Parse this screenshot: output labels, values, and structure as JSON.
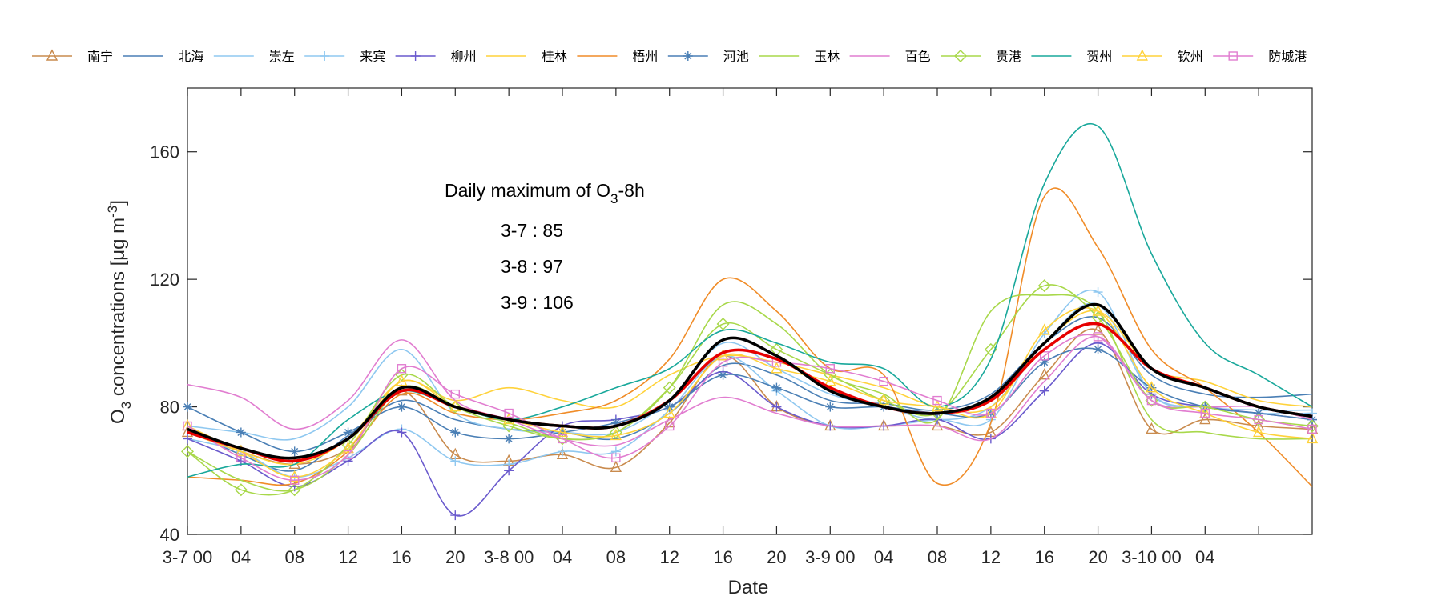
{
  "chart_data": {
    "type": "line",
    "xlabel": "Date",
    "ylabel_parts": {
      "main": "O",
      "sub": "3",
      "rest": " concentrations [μg m",
      "sup": "-3",
      "end": "]"
    },
    "ylim": [
      40,
      180
    ],
    "xlim": [
      0,
      84
    ],
    "yticks": [
      40,
      80,
      120,
      160
    ],
    "ytick_labels": [
      "40",
      "80",
      "120",
      "160"
    ],
    "xticks": [
      0,
      4,
      8,
      12,
      16,
      20,
      24,
      28,
      32,
      36,
      40,
      44,
      48,
      52,
      56,
      60,
      64,
      68,
      72,
      76,
      80
    ],
    "xtick_labels": [
      "3-7 00",
      "04",
      "08",
      "12",
      "16",
      "20",
      "3-8 00",
      "04",
      "08",
      "12",
      "16",
      "20",
      "3-9 00",
      "04",
      "08",
      "12",
      "16",
      "20",
      "3-10 00",
      "04",
      ""
    ],
    "annotation": {
      "title_main": "Daily maximum of O",
      "title_sub": "3",
      "title_end": "-8h",
      "lines": [
        "3-7 : 85",
        "3-8 : 97",
        "3-9 : 106"
      ]
    },
    "x": [
      0,
      4,
      8,
      12,
      16,
      20,
      24,
      28,
      32,
      36,
      40,
      44,
      48,
      52,
      56,
      60,
      64,
      68,
      72,
      76,
      80,
      84
    ],
    "series": [
      {
        "name": "南宁",
        "color": "#C98B4E",
        "marker": "triangle",
        "values": [
          72,
          66,
          62,
          67,
          85,
          65,
          63,
          65,
          61,
          75,
          96,
          80,
          74,
          74,
          74,
          72,
          90,
          104,
          73,
          76,
          74,
          73
        ]
      },
      {
        "name": "北海",
        "color": "#4A7FB5",
        "marker": "none",
        "values": [
          73,
          65,
          60,
          71,
          82,
          76,
          73,
          72,
          70,
          78,
          93,
          90,
          82,
          81,
          79,
          84,
          100,
          108,
          90,
          84,
          83,
          84
        ]
      },
      {
        "name": "崇左",
        "color": "#8FC8F0",
        "marker": "none",
        "values": [
          74,
          72,
          70,
          80,
          98,
          78,
          73,
          72,
          72,
          82,
          100,
          92,
          84,
          80,
          76,
          80,
          100,
          112,
          84,
          80,
          79,
          79
        ]
      },
      {
        "name": "来宾",
        "color": "#8FC8F0",
        "marker": "plus",
        "values": [
          70,
          66,
          58,
          64,
          73,
          63,
          62,
          66,
          66,
          79,
          96,
          85,
          74,
          74,
          76,
          76,
          103,
          116,
          84,
          80,
          78,
          78
        ]
      },
      {
        "name": "柳州",
        "color": "#6A5ACD",
        "marker": "plus",
        "values": [
          70,
          63,
          55,
          63,
          72,
          46,
          60,
          74,
          76,
          80,
          91,
          80,
          74,
          74,
          76,
          70,
          85,
          100,
          84,
          80,
          78,
          76
        ]
      },
      {
        "name": "桂林",
        "color": "#FFD23A",
        "marker": "none",
        "values": [
          72,
          66,
          62,
          70,
          88,
          82,
          86,
          82,
          80,
          90,
          96,
          94,
          90,
          86,
          80,
          80,
          100,
          110,
          92,
          88,
          82,
          80
        ]
      },
      {
        "name": "梧州",
        "color": "#F08C28",
        "marker": "none",
        "values": [
          58,
          57,
          56,
          66,
          84,
          78,
          76,
          78,
          82,
          95,
          120,
          110,
          92,
          90,
          56,
          75,
          146,
          130,
          98,
          86,
          72,
          55
        ]
      },
      {
        "name": "河池",
        "color": "#4A7FB5",
        "marker": "star",
        "values": [
          80,
          72,
          66,
          72,
          80,
          72,
          70,
          72,
          75,
          80,
          90,
          86,
          80,
          80,
          78,
          78,
          94,
          98,
          86,
          80,
          78,
          76
        ]
      },
      {
        "name": "玉林",
        "color": "#A8D84A",
        "marker": "none",
        "values": [
          66,
          57,
          54,
          65,
          86,
          80,
          75,
          70,
          72,
          86,
          112,
          106,
          90,
          84,
          76,
          110,
          115,
          110,
          76,
          72,
          70,
          70
        ]
      },
      {
        "name": "百色",
        "color": "#E17DD0",
        "marker": "none",
        "values": [
          87,
          83,
          73,
          82,
          101,
          82,
          76,
          70,
          68,
          76,
          83,
          78,
          74,
          74,
          74,
          70,
          88,
          102,
          82,
          80,
          80,
          76
        ]
      },
      {
        "name": "贵港",
        "color": "#A8D84A",
        "marker": "diamond",
        "values": [
          66,
          54,
          54,
          68,
          90,
          80,
          74,
          70,
          72,
          86,
          106,
          98,
          90,
          82,
          78,
          98,
          118,
          108,
          82,
          80,
          76,
          74
        ]
      },
      {
        "name": "贺州",
        "color": "#19A89B",
        "marker": "none",
        "values": [
          58,
          62,
          62,
          76,
          85,
          80,
          76,
          80,
          86,
          92,
          104,
          100,
          94,
          92,
          80,
          95,
          150,
          168,
          128,
          100,
          90,
          80
        ]
      },
      {
        "name": "钦州",
        "color": "#FFD23A",
        "marker": "triangle",
        "values": [
          74,
          66,
          58,
          67,
          88,
          80,
          76,
          72,
          71,
          78,
          96,
          92,
          88,
          82,
          80,
          78,
          104,
          110,
          86,
          78,
          72,
          70
        ]
      },
      {
        "name": "防城港",
        "color": "#E17DD0",
        "marker": "square",
        "values": [
          74,
          64,
          57,
          65,
          92,
          84,
          78,
          70,
          64,
          74,
          94,
          94,
          92,
          88,
          82,
          78,
          96,
          102,
          82,
          78,
          76,
          73
        ]
      },
      {
        "name": "",
        "color": "#E60000",
        "marker": "none",
        "values": [
          72,
          67,
          63,
          70,
          85,
          80,
          76,
          74,
          74,
          82,
          97,
          95,
          86,
          80,
          78,
          82,
          98,
          106,
          92,
          86,
          80,
          77
        ]
      },
      {
        "name": "",
        "color": "#000000",
        "marker": "none",
        "values": [
          73,
          67,
          64,
          70,
          86,
          80,
          76,
          74,
          74,
          82,
          101,
          96,
          85,
          80,
          78,
          83,
          100,
          112,
          92,
          86,
          80,
          77
        ]
      }
    ]
  }
}
